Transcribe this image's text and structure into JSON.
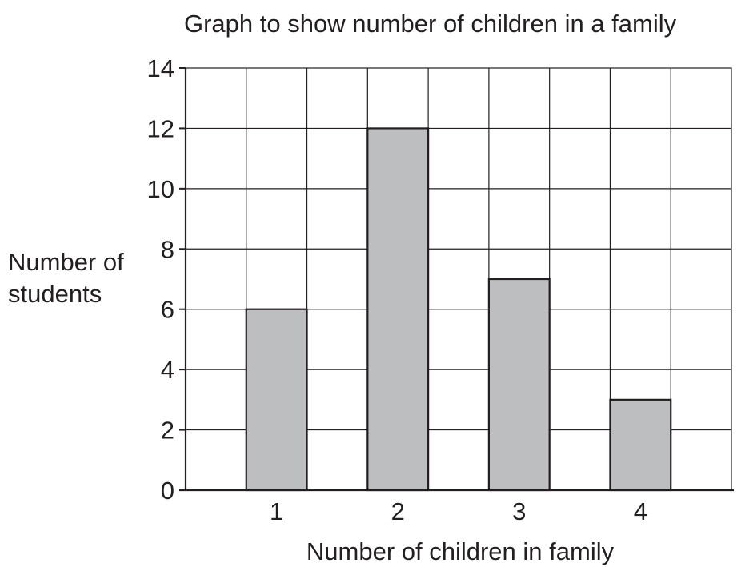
{
  "chart_data": {
    "type": "bar",
    "title": "Graph to show number of children in a family",
    "xlabel": "Number of children in family",
    "ylabel": "Number of\nstudents",
    "categories": [
      "1",
      "2",
      "3",
      "4"
    ],
    "values": [
      6,
      12,
      7,
      3
    ],
    "ylim": [
      0,
      14
    ],
    "yticks": [
      0,
      2,
      4,
      6,
      8,
      10,
      12,
      14
    ],
    "grid": true,
    "legend": "none",
    "bar_color": "#bcbec0",
    "edge_color": "#231f20"
  }
}
